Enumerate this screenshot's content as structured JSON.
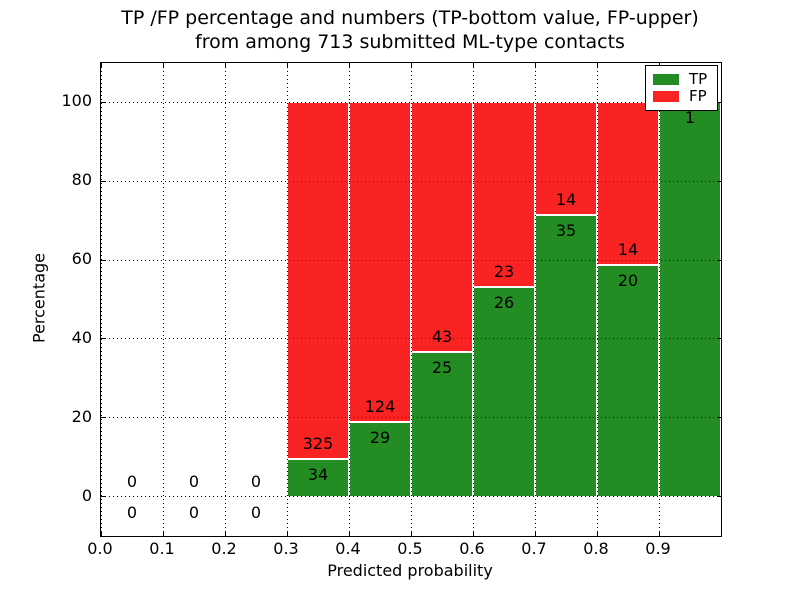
{
  "title": {
    "line1": "TP /FP percentage and numbers (TP-bottom value, FP-upper)",
    "line2": "from among 713 submitted ML-type contacts"
  },
  "axes": {
    "xlabel": "Predicted probability",
    "ylabel": "Percentage"
  },
  "legend": {
    "items": [
      {
        "label": "TP",
        "color": "#238c23"
      },
      {
        "label": "FP",
        "color": "#fa2323"
      }
    ],
    "position": "upper-right"
  },
  "colors": {
    "tp": "#238c23",
    "fp": "#fa2323",
    "grid": "#000000",
    "axes_border": "#000000",
    "background": "#ffffff"
  },
  "chart_data": {
    "type": "bar",
    "stacked": true,
    "units": "percent",
    "title": "TP /FP percentage and numbers (TP-bottom value, FP-upper) from among 713 submitted ML-type contacts",
    "total_contacts": 713,
    "xlabel": "Predicted probability",
    "ylabel": "Percentage",
    "xlim": [
      0.0,
      1.0
    ],
    "ylim": [
      -10,
      110
    ],
    "x_ticks": [
      "0.0",
      "0.1",
      "0.2",
      "0.3",
      "0.4",
      "0.5",
      "0.6",
      "0.7",
      "0.8",
      "0.9"
    ],
    "y_ticks": [
      0,
      20,
      40,
      60,
      80,
      100
    ],
    "grid": "dotted",
    "legend_position": "upper-right",
    "series": [
      {
        "name": "TP",
        "color": "#238c23"
      },
      {
        "name": "FP",
        "color": "#fa2323"
      }
    ],
    "bins": [
      {
        "range": [
          0.0,
          0.1
        ],
        "tp_count": 0,
        "fp_count": 0,
        "tp_pct": 0,
        "fp_pct": 0
      },
      {
        "range": [
          0.1,
          0.2
        ],
        "tp_count": 0,
        "fp_count": 0,
        "tp_pct": 0,
        "fp_pct": 0
      },
      {
        "range": [
          0.2,
          0.3
        ],
        "tp_count": 0,
        "fp_count": 0,
        "tp_pct": 0,
        "fp_pct": 0
      },
      {
        "range": [
          0.3,
          0.4
        ],
        "tp_count": 34,
        "fp_count": 325,
        "tp_pct": 9.47,
        "fp_pct": 90.53
      },
      {
        "range": [
          0.4,
          0.5
        ],
        "tp_count": 29,
        "fp_count": 124,
        "tp_pct": 18.95,
        "fp_pct": 81.05
      },
      {
        "range": [
          0.5,
          0.6
        ],
        "tp_count": 25,
        "fp_count": 43,
        "tp_pct": 36.76,
        "fp_pct": 63.24
      },
      {
        "range": [
          0.6,
          0.7
        ],
        "tp_count": 26,
        "fp_count": 23,
        "tp_pct": 53.06,
        "fp_pct": 46.94
      },
      {
        "range": [
          0.7,
          0.8
        ],
        "tp_count": 35,
        "fp_count": 14,
        "tp_pct": 71.43,
        "fp_pct": 28.57
      },
      {
        "range": [
          0.8,
          0.9
        ],
        "tp_count": 20,
        "fp_count": 14,
        "tp_pct": 58.82,
        "fp_pct": 41.18
      },
      {
        "range": [
          0.9,
          1.0
        ],
        "tp_count": 1,
        "fp_count": 0,
        "tp_pct": 100,
        "fp_pct": 0
      }
    ]
  }
}
